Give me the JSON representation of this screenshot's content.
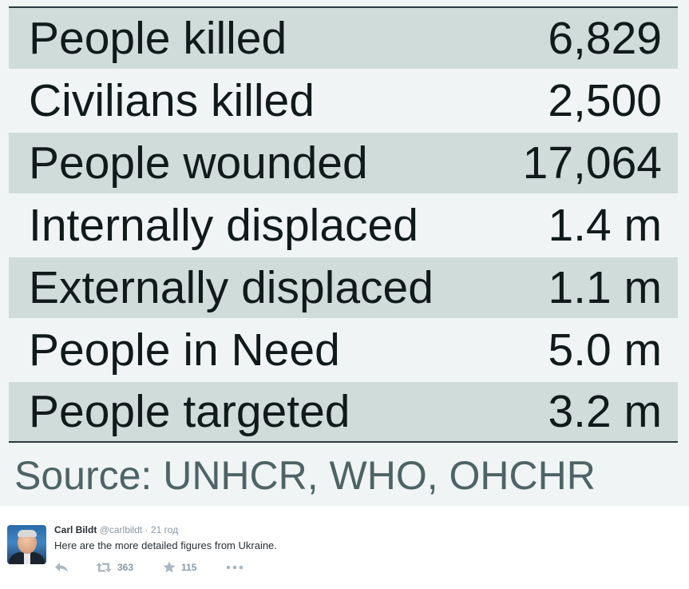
{
  "stats": [
    {
      "label": "People killed",
      "value": "6,829"
    },
    {
      "label": "Civilians killed",
      "value": "2,500"
    },
    {
      "label": "People wounded",
      "value": "17,064"
    },
    {
      "label": "Internally displaced",
      "value": "1.4 m"
    },
    {
      "label": "Externally displaced",
      "value": "1.1 m"
    },
    {
      "label": "People in Need",
      "value": "5.0 m"
    },
    {
      "label": "People targeted",
      "value": "3.2 m"
    }
  ],
  "source": "Source: UNHCR, WHO, OHCHR",
  "tweet": {
    "author_name": "Carl Bildt",
    "author_handle": "@carlbildt",
    "separator": "·",
    "time": "21 год",
    "text": "Here are the more detailed figures from Ukraine.",
    "retweet_count": "363",
    "favorite_count": "115"
  },
  "icons": {
    "reply": "reply-icon",
    "retweet": "retweet-icon",
    "favorite": "star-icon",
    "more": "more-dots-icon"
  },
  "colors": {
    "row_shade": "#cfdcd9",
    "card_background": "#f0f4f5",
    "source_text": "#4d6466",
    "icon_gray": "#aab8c2"
  }
}
